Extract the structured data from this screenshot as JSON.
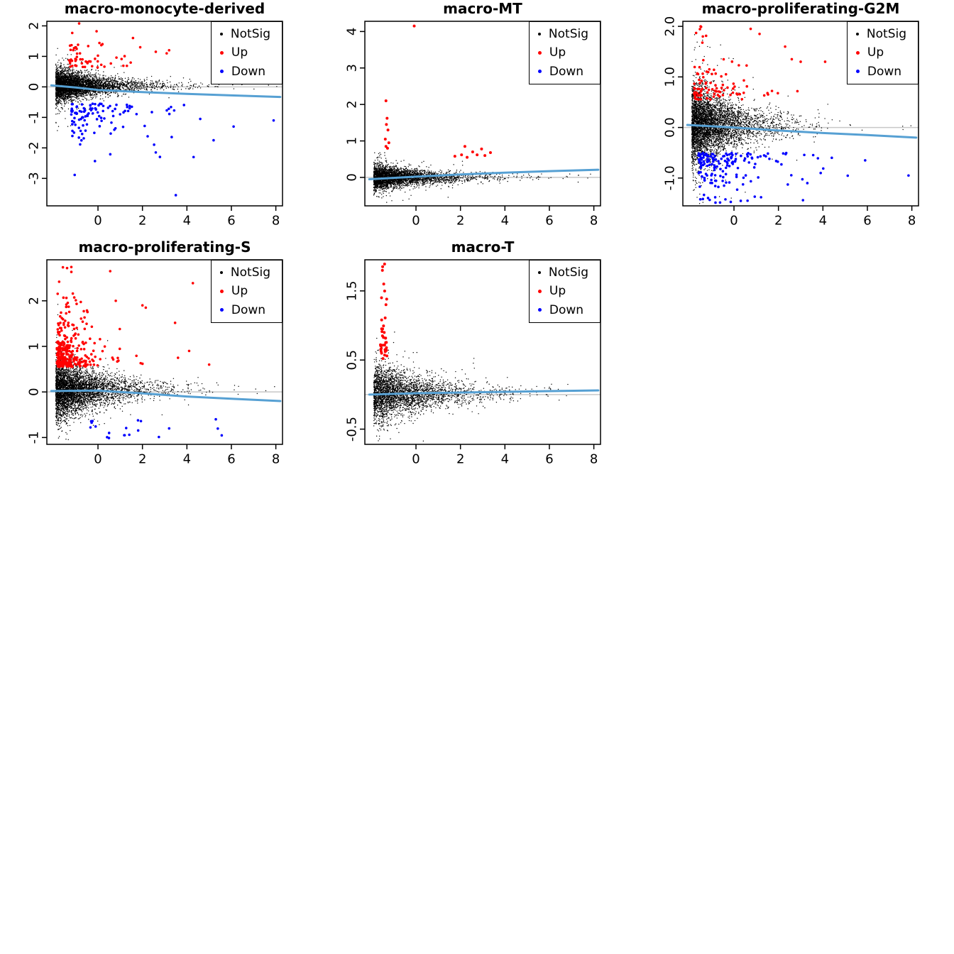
{
  "palette": {
    "not_sig": "#000000",
    "up": "#FF0000",
    "down": "#0000FF",
    "trend_line": "#56A0D3",
    "zero_line": "#C8C8C8",
    "axis": "#000000"
  },
  "legend": {
    "items": [
      {
        "label": "NotSig",
        "color_key": "not_sig"
      },
      {
        "label": "Up",
        "color_key": "up"
      },
      {
        "label": "Down",
        "color_key": "down"
      }
    ]
  },
  "chart_data": [
    {
      "type": "scatter",
      "title": "macro-monocyte-derived",
      "xlabel": "",
      "ylabel": "",
      "xlim": [
        -2.3,
        8.3
      ],
      "ylim": [
        -3.9,
        2.15
      ],
      "x_ticks": [
        0,
        2,
        4,
        6,
        8
      ],
      "x_tick_labels": [
        "0",
        "2",
        "4",
        "6",
        "8"
      ],
      "y_ticks": [
        -3,
        -2,
        -1,
        0,
        1,
        2
      ],
      "y_tick_labels": [
        "-3",
        "-2",
        "-1",
        "0",
        "1",
        "2"
      ],
      "grid": false,
      "legend_position": "top-right",
      "zero_line_y": 0,
      "trend": [
        [
          -2.1,
          0.05
        ],
        [
          -1,
          -0.02
        ],
        [
          0,
          -0.1
        ],
        [
          2,
          -0.17
        ],
        [
          4,
          -0.23
        ],
        [
          6,
          -0.28
        ],
        [
          8.2,
          -0.33
        ]
      ],
      "series": [
        {
          "group": "NotSig",
          "n": 4500,
          "seed": 101,
          "x_min": -1.9,
          "x_scale": 1.2,
          "y_base": 0.04,
          "sd_left": 0.2,
          "sd_right": 0.07,
          "r": 0.7
        },
        {
          "group": "Down",
          "n": 110,
          "seed": 103,
          "x_min": -1.2,
          "x_scale": 1.5,
          "y_base": -0.55,
          "y_spread": 0.5,
          "r": 1.8,
          "extra": [
            [
              3.5,
              -3.55
            ],
            [
              4.3,
              -2.3
            ],
            [
              2.6,
              -2.15
            ],
            [
              5.2,
              -1.75
            ],
            [
              7.9,
              -1.1
            ],
            [
              6.1,
              -1.3
            ],
            [
              4.6,
              -1.05
            ]
          ]
        },
        {
          "group": "Up",
          "n": 55,
          "seed": 102,
          "x_min": -1.3,
          "x_scale": 0.9,
          "y_base": 0.6,
          "y_spread": 0.4,
          "r": 1.8,
          "extra": [
            [
              2.6,
              1.15
            ],
            [
              3.2,
              1.2
            ],
            [
              1.9,
              1.3
            ],
            [
              0.2,
              1.4
            ]
          ]
        }
      ]
    },
    {
      "type": "scatter",
      "title": "macro-MT",
      "xlabel": "",
      "ylabel": "",
      "xlim": [
        -2.3,
        8.3
      ],
      "ylim": [
        -0.78,
        4.28
      ],
      "x_ticks": [
        0,
        2,
        4,
        6,
        8
      ],
      "x_tick_labels": [
        "0",
        "2",
        "4",
        "6",
        "8"
      ],
      "y_ticks": [
        0,
        1,
        2,
        3,
        4
      ],
      "y_tick_labels": [
        "0",
        "1",
        "2",
        "3",
        "4"
      ],
      "grid": false,
      "legend_position": "top-right",
      "zero_line_y": 0,
      "trend": [
        [
          -2.1,
          -0.05
        ],
        [
          0,
          0.02
        ],
        [
          2,
          0.08
        ],
        [
          4,
          0.13
        ],
        [
          6,
          0.17
        ],
        [
          8.2,
          0.21
        ]
      ],
      "series": [
        {
          "group": "NotSig",
          "n": 3600,
          "seed": 201,
          "x_min": -1.9,
          "x_scale": 1.3,
          "y_base": 0.0,
          "sd_left": 0.13,
          "sd_right": 0.05,
          "r": 0.7
        },
        {
          "group": "Up",
          "n": 0,
          "seed": 202,
          "x_min": -1.4,
          "x_scale": 0.5,
          "y_base": 0.5,
          "y_spread": 0.3,
          "r": 2,
          "extra": [
            [
              -0.08,
              4.15
            ],
            [
              -1.35,
              2.1
            ],
            [
              -1.3,
              1.62
            ],
            [
              -1.33,
              1.45
            ],
            [
              -1.26,
              1.3
            ],
            [
              -1.38,
              1.05
            ],
            [
              -1.22,
              0.95
            ],
            [
              -1.35,
              0.85
            ],
            [
              -1.28,
              0.8
            ],
            [
              2.05,
              0.62
            ],
            [
              2.3,
              0.55
            ],
            [
              2.55,
              0.7
            ],
            [
              2.75,
              0.62
            ],
            [
              2.95,
              0.78
            ],
            [
              3.1,
              0.6
            ],
            [
              3.35,
              0.68
            ],
            [
              2.2,
              0.85
            ],
            [
              1.75,
              0.58
            ]
          ]
        }
      ]
    },
    {
      "type": "scatter",
      "title": "macro-proliferating-G2M",
      "xlabel": "",
      "ylabel": "",
      "xlim": [
        -2.3,
        8.3
      ],
      "ylim": [
        -1.55,
        2.1
      ],
      "x_ticks": [
        0,
        2,
        4,
        6,
        8
      ],
      "x_tick_labels": [
        "0",
        "2",
        "4",
        "6",
        "8"
      ],
      "y_ticks": [
        -1.0,
        0.0,
        1.0,
        2.0
      ],
      "y_tick_labels": [
        "-1.0",
        "0.0",
        "1.0",
        "2.0"
      ],
      "grid": false,
      "legend_position": "top-right",
      "zero_line_y": 0,
      "trend": [
        [
          -2.1,
          0.05
        ],
        [
          0,
          0.0
        ],
        [
          2,
          -0.06
        ],
        [
          4,
          -0.11
        ],
        [
          6,
          -0.15
        ],
        [
          8.2,
          -0.2
        ]
      ],
      "series": [
        {
          "group": "NotSig",
          "n": 4800,
          "seed": 301,
          "x_min": -1.9,
          "x_scale": 1.1,
          "y_base": 0.05,
          "sd_left": 0.3,
          "sd_right": 0.1,
          "r": 0.7
        },
        {
          "group": "Down",
          "n": 170,
          "seed": 303,
          "x_min": -1.6,
          "x_scale": 1.2,
          "y_base": -0.5,
          "y_spread": 0.3,
          "r": 1.8,
          "extra": [
            [
              7.85,
              -0.95
            ],
            [
              5.9,
              -0.65
            ],
            [
              3.9,
              -0.9
            ],
            [
              4.4,
              -0.6
            ],
            [
              3.3,
              -1.1
            ]
          ]
        },
        {
          "group": "Up",
          "n": 95,
          "seed": 302,
          "x_min": -1.8,
          "x_scale": 0.9,
          "y_base": 0.55,
          "y_spread": 0.35,
          "r": 1.8,
          "extra": [
            [
              -1.5,
              2.0
            ],
            [
              0.75,
              1.95
            ],
            [
              2.3,
              1.6
            ],
            [
              1.15,
              1.85
            ],
            [
              3.0,
              1.3
            ],
            [
              2.6,
              1.35
            ],
            [
              4.1,
              1.3
            ]
          ]
        }
      ]
    },
    {
      "type": "scatter",
      "title": "macro-proliferating-S",
      "xlabel": "",
      "ylabel": "",
      "xlim": [
        -2.3,
        8.3
      ],
      "ylim": [
        -1.15,
        2.9
      ],
      "x_ticks": [
        0,
        2,
        4,
        6,
        8
      ],
      "x_tick_labels": [
        "0",
        "2",
        "4",
        "6",
        "8"
      ],
      "y_ticks": [
        -1,
        0,
        1,
        2
      ],
      "y_tick_labels": [
        "-1",
        "0",
        "1",
        "2"
      ],
      "grid": false,
      "legend_position": "top-right",
      "zero_line_y": 0,
      "trend": [
        [
          -2.1,
          0.02
        ],
        [
          0,
          0.03
        ],
        [
          2,
          -0.03
        ],
        [
          4,
          -0.1
        ],
        [
          6,
          -0.15
        ],
        [
          8.2,
          -0.2
        ]
      ],
      "series": [
        {
          "group": "NotSig",
          "n": 4600,
          "seed": 401,
          "x_min": -1.9,
          "x_scale": 1.2,
          "y_base": 0.05,
          "sd_left": 0.26,
          "sd_right": 0.08,
          "r": 0.7
        },
        {
          "group": "Down",
          "n": 16,
          "seed": 403,
          "x_min": -0.5,
          "x_scale": 1.8,
          "y_base": -0.6,
          "y_spread": 0.2,
          "r": 1.8,
          "extra": [
            [
              1.2,
              -0.95
            ],
            [
              5.3,
              -0.6
            ],
            [
              3.2,
              -0.8
            ],
            [
              0.5,
              -0.9
            ]
          ]
        },
        {
          "group": "Up",
          "n": 300,
          "seed": 402,
          "x_min": -1.85,
          "x_scale": 0.75,
          "y_base": 0.55,
          "y_spread": 0.42,
          "r": 1.8,
          "extra": [
            [
              0.55,
              2.65
            ],
            [
              0.8,
              2.0
            ],
            [
              2.0,
              1.9
            ],
            [
              2.15,
              1.85
            ],
            [
              4.1,
              0.9
            ],
            [
              3.6,
              0.75
            ],
            [
              5.0,
              0.6
            ]
          ]
        }
      ]
    },
    {
      "type": "scatter",
      "title": "macro-T",
      "xlabel": "",
      "ylabel": "",
      "xlim": [
        -2.3,
        8.3
      ],
      "ylim": [
        -0.72,
        1.95
      ],
      "x_ticks": [
        0,
        2,
        4,
        6,
        8
      ],
      "x_tick_labels": [
        "0",
        "2",
        "4",
        "6",
        "8"
      ],
      "y_ticks": [
        -0.5,
        0.5,
        1.5
      ],
      "y_tick_labels": [
        "-0.5",
        "0.5",
        "1.5"
      ],
      "grid": false,
      "legend_position": "top-right",
      "zero_line_y": 0,
      "trend": [
        [
          -2.1,
          0.0
        ],
        [
          0,
          0.02
        ],
        [
          2,
          0.03
        ],
        [
          4,
          0.04
        ],
        [
          6,
          0.05
        ],
        [
          8.2,
          0.06
        ]
      ],
      "series": [
        {
          "group": "NotSig",
          "n": 3200,
          "seed": 501,
          "x_min": -1.9,
          "x_scale": 1.5,
          "y_base": 0.02,
          "sd_left": 0.16,
          "sd_right": 0.06,
          "r": 0.7
        },
        {
          "group": "Up",
          "n": 34,
          "seed": 502,
          "x_range": [
            -1.62,
            -1.3
          ],
          "y_base": 0.5,
          "y_spread": 0.35,
          "r": 2,
          "extra": [
            [
              5.15,
              1.18
            ],
            [
              -1.5,
              1.85
            ],
            [
              -1.45,
              1.6
            ],
            [
              -1.55,
              1.4
            ],
            [
              -1.35,
              1.3
            ]
          ]
        }
      ]
    }
  ]
}
